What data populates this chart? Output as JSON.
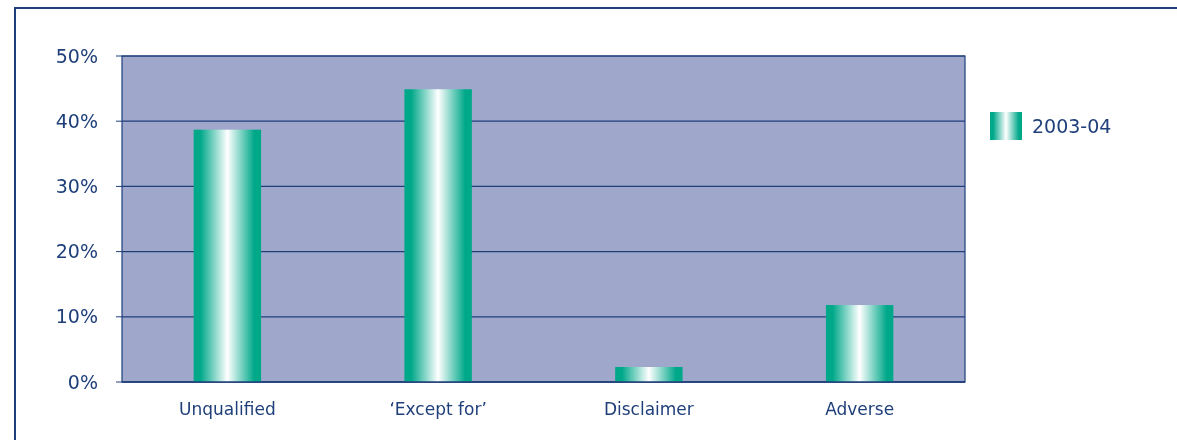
{
  "chart_data": {
    "type": "bar",
    "categories": [
      "Unqualified",
      "‘Except for’",
      "Disclaimer",
      "Adverse"
    ],
    "series": [
      {
        "name": "2003-04",
        "color": "#00a88a",
        "values": [
          38.7,
          44.9,
          2.3,
          11.8
        ]
      }
    ],
    "ylim": [
      0,
      50
    ],
    "yticks": [
      {
        "value": 0,
        "label": "0%"
      },
      {
        "value": 10,
        "label": "10%"
      },
      {
        "value": 20,
        "label": "20%"
      },
      {
        "value": 30,
        "label": "30%"
      },
      {
        "value": 40,
        "label": "40%"
      },
      {
        "value": 50,
        "label": "50%"
      }
    ],
    "grid": "y",
    "legend": "right"
  }
}
